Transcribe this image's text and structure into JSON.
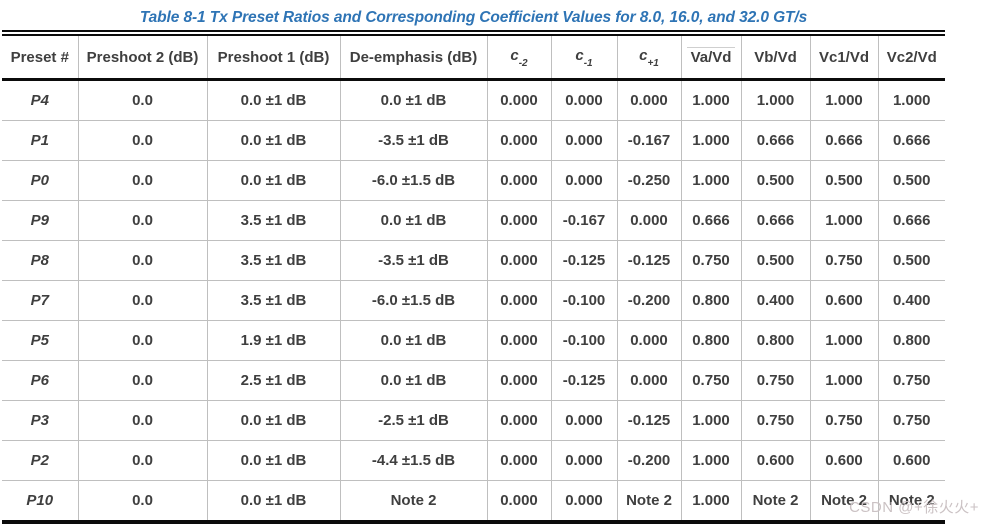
{
  "title": "Table 8-1 Tx Preset Ratios and Corresponding Coefficient Values for 8.0, 16.0, and 32.0 GT/s",
  "watermark": "CSDN @+徐火火+",
  "colors": {
    "title_blue": "#2E74B5",
    "body_text": "#3F3F3F",
    "grid_line": "#BFBFBF",
    "heavy_line": "#0B0B0B",
    "watermark_gray": "#CBC2C4"
  },
  "table": {
    "columns": [
      {
        "label": "Preset #"
      },
      {
        "label": "Preshoot 2 (dB)"
      },
      {
        "label": "Preshoot 1 (dB)"
      },
      {
        "label": "De-emphasis (dB)"
      },
      {
        "label": "c",
        "sub": "-2",
        "italic": true
      },
      {
        "label": "c",
        "sub": "-1",
        "italic": true
      },
      {
        "label": "c",
        "sub": "+1",
        "italic": true
      },
      {
        "label": "Va/Vd",
        "overline": true
      },
      {
        "label": "Vb/Vd"
      },
      {
        "label": "Vc1/Vd"
      },
      {
        "label": "Vc2/Vd"
      }
    ],
    "rows": [
      [
        "P4",
        "0.0",
        "0.0 ±1 dB",
        "0.0 ±1 dB",
        "0.000",
        "0.000",
        "0.000",
        "1.000",
        "1.000",
        "1.000",
        "1.000"
      ],
      [
        "P1",
        "0.0",
        "0.0 ±1 dB",
        "-3.5 ±1 dB",
        "0.000",
        "0.000",
        "-0.167",
        "1.000",
        "0.666",
        "0.666",
        "0.666"
      ],
      [
        "P0",
        "0.0",
        "0.0 ±1 dB",
        "-6.0 ±1.5 dB",
        "0.000",
        "0.000",
        "-0.250",
        "1.000",
        "0.500",
        "0.500",
        "0.500"
      ],
      [
        "P9",
        "0.0",
        "3.5 ±1 dB",
        "0.0 ±1 dB",
        "0.000",
        "-0.167",
        "0.000",
        "0.666",
        "0.666",
        "1.000",
        "0.666"
      ],
      [
        "P8",
        "0.0",
        "3.5 ±1 dB",
        "-3.5 ±1 dB",
        "0.000",
        "-0.125",
        "-0.125",
        "0.750",
        "0.500",
        "0.750",
        "0.500"
      ],
      [
        "P7",
        "0.0",
        "3.5 ±1 dB",
        "-6.0 ±1.5 dB",
        "0.000",
        "-0.100",
        "-0.200",
        "0.800",
        "0.400",
        "0.600",
        "0.400"
      ],
      [
        "P5",
        "0.0",
        "1.9 ±1 dB",
        "0.0 ±1 dB",
        "0.000",
        "-0.100",
        "0.000",
        "0.800",
        "0.800",
        "1.000",
        "0.800"
      ],
      [
        "P6",
        "0.0",
        "2.5 ±1 dB",
        "0.0 ±1 dB",
        "0.000",
        "-0.125",
        "0.000",
        "0.750",
        "0.750",
        "1.000",
        "0.750"
      ],
      [
        "P3",
        "0.0",
        "0.0 ±1 dB",
        "-2.5 ±1 dB",
        "0.000",
        "0.000",
        "-0.125",
        "1.000",
        "0.750",
        "0.750",
        "0.750"
      ],
      [
        "P2",
        "0.0",
        "0.0 ±1 dB",
        "-4.4 ±1.5 dB",
        "0.000",
        "0.000",
        "-0.200",
        "1.000",
        "0.600",
        "0.600",
        "0.600"
      ],
      [
        "P10",
        "0.0",
        "0.0 ±1 dB",
        "Note 2",
        "0.000",
        "0.000",
        "Note 2",
        "1.000",
        "Note 2",
        "Note 2",
        "Note 2"
      ]
    ]
  }
}
